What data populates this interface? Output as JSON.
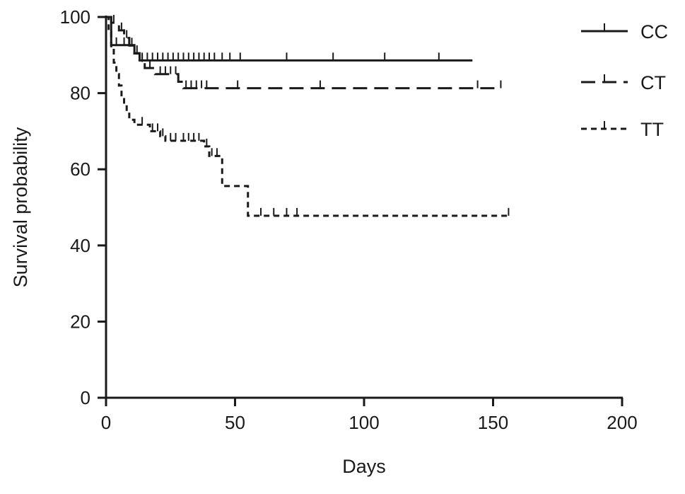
{
  "chart_data": {
    "type": "line",
    "title": "",
    "xlabel": "Days",
    "ylabel": "Survival probability",
    "xlim": [
      0,
      200
    ],
    "ylim": [
      0,
      100
    ],
    "xticks": [
      0,
      50,
      100,
      150,
      200
    ],
    "yticks": [
      0,
      20,
      40,
      60,
      80,
      100
    ],
    "xtick_labels": [
      "0",
      "50",
      "100",
      "150",
      "200"
    ],
    "ytick_labels": [
      "0",
      "20",
      "40",
      "60",
      "80",
      "100"
    ],
    "grid": false,
    "legend_position": "top-right",
    "series": [
      {
        "name": "CC",
        "color": "#1a1a1a",
        "dash": "solid",
        "steps": [
          [
            0,
            100
          ],
          [
            2,
            92.6
          ],
          [
            11,
            90.5
          ],
          [
            13,
            88.6
          ],
          [
            142,
            88.6
          ]
        ],
        "censor": [
          4,
          7,
          9,
          12,
          14,
          16,
          18,
          20,
          22,
          24,
          26,
          28,
          30,
          32,
          34,
          36,
          38,
          40,
          42,
          45,
          48,
          52,
          70,
          88,
          108,
          129
        ]
      },
      {
        "name": "CT",
        "color": "#1a1a1a",
        "dash": "long",
        "steps": [
          [
            0,
            100
          ],
          [
            2,
            98.5
          ],
          [
            5,
            96.5
          ],
          [
            7,
            94.5
          ],
          [
            9,
            92.5
          ],
          [
            11,
            90.4
          ],
          [
            13,
            88.2
          ],
          [
            15,
            86.6
          ],
          [
            19,
            85
          ],
          [
            28,
            83
          ],
          [
            30,
            81.3
          ],
          [
            153,
            81.3
          ]
        ],
        "censor": [
          3,
          6,
          8,
          10,
          14,
          17,
          21,
          23,
          25,
          27,
          31,
          33,
          35,
          37,
          39,
          51,
          83,
          144,
          153
        ]
      },
      {
        "name": "TT",
        "color": "#1a1a1a",
        "dash": "short",
        "steps": [
          [
            0,
            100
          ],
          [
            1,
            96
          ],
          [
            2,
            92
          ],
          [
            3,
            88
          ],
          [
            4,
            85
          ],
          [
            5,
            82
          ],
          [
            6,
            79
          ],
          [
            7,
            77
          ],
          [
            8,
            75
          ],
          [
            9,
            73
          ],
          [
            11,
            71.7
          ],
          [
            17,
            70
          ],
          [
            21,
            68.7
          ],
          [
            23,
            67.5
          ],
          [
            38,
            66
          ],
          [
            40,
            63.5
          ],
          [
            45,
            55.6
          ],
          [
            55,
            47.8
          ],
          [
            156,
            47.8
          ]
        ],
        "censor": [
          14,
          18,
          20,
          22,
          25,
          27,
          30,
          32,
          34,
          36,
          39,
          41,
          43,
          60,
          65,
          70,
          74,
          156
        ]
      }
    ]
  }
}
